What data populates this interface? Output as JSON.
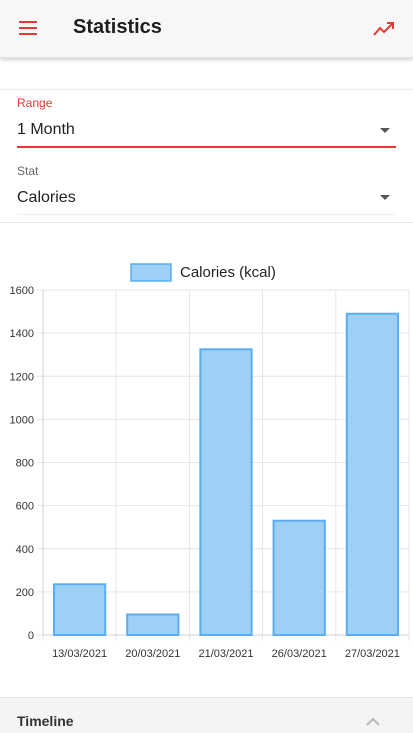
{
  "app_bar": {
    "title": "Statistics",
    "icons": {
      "menu": "hamburger-menu-icon",
      "action": "trending-up-icon"
    },
    "accent_color": "#e53935"
  },
  "filters": {
    "range": {
      "label": "Range",
      "value": "1 Month"
    },
    "stat": {
      "label": "Stat",
      "value": "Calories"
    }
  },
  "chart_data": {
    "type": "bar",
    "title": "",
    "xlabel": "",
    "ylabel": "",
    "categories": [
      "13/03/2021",
      "20/03/2021",
      "21/03/2021",
      "26/03/2021",
      "27/03/2021"
    ],
    "series": [
      {
        "name": "Calories (kcal)",
        "values": [
          235,
          95,
          1325,
          530,
          1490
        ]
      }
    ],
    "ylim": [
      0,
      1600
    ],
    "yticks": [
      "0",
      "200",
      "400",
      "600",
      "800",
      "1000",
      "1200",
      "1400",
      "1600"
    ],
    "grid": true,
    "legend_position": "top-center",
    "bar_fill": "#9ed0f6",
    "bar_stroke": "#5aaef0"
  },
  "timeline": {
    "title": "Timeline",
    "icon": "chevron-up-icon"
  }
}
